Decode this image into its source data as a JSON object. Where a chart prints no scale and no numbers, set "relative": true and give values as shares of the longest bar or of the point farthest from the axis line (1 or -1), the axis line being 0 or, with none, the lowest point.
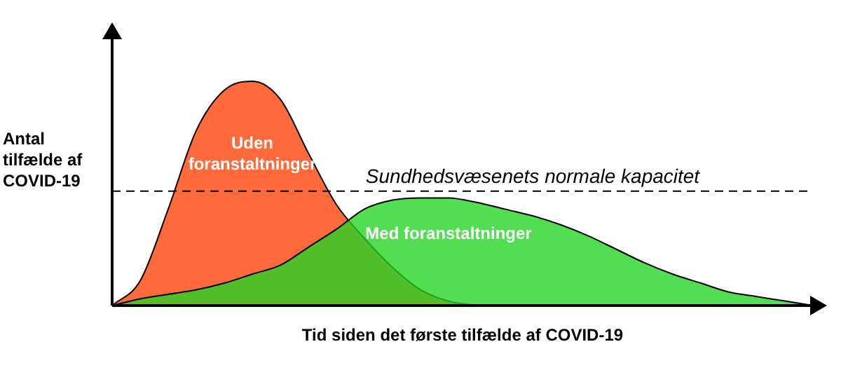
{
  "chart_data": {
    "type": "area",
    "relative": true,
    "xlabel": "Tid siden det første tilfælde af COVID-19",
    "ylabel": "Antal tilfælde af COVID-19",
    "legend": false,
    "categories": [
      null,
      null,
      null,
      null,
      null,
      null,
      null,
      null,
      null,
      null,
      null,
      null,
      null,
      null,
      null,
      null,
      null,
      null,
      null,
      null,
      null,
      null,
      null,
      null,
      null,
      null
    ],
    "series": [
      {
        "name": "Uden foranstaltninger",
        "color": "#ff6a3d",
        "values": [
          0,
          0.11,
          0.43,
          0.78,
          0.96,
          1,
          0.92,
          0.68,
          0.45,
          0.3,
          0.17,
          0.07,
          0.02,
          0,
          null,
          null,
          null,
          null,
          null,
          null,
          null,
          null,
          null,
          null,
          null,
          null
        ]
      },
      {
        "name": "Med foranstaltninger",
        "color": "#22d422",
        "values": [
          0,
          0.03,
          0.05,
          0.07,
          0.1,
          0.14,
          0.18,
          0.26,
          0.34,
          0.43,
          0.47,
          0.48,
          0.48,
          0.46,
          0.43,
          0.4,
          0.36,
          0.31,
          0.25,
          0.19,
          0.14,
          0.1,
          0.06,
          0.04,
          0.02,
          0
        ]
      }
    ],
    "ref_lines": [
      {
        "axis": "y",
        "value": 0.51,
        "label": "Sundhedsvæsenets normale kapacitet",
        "color": "#000000",
        "line_style": "dashed"
      }
    ]
  }
}
